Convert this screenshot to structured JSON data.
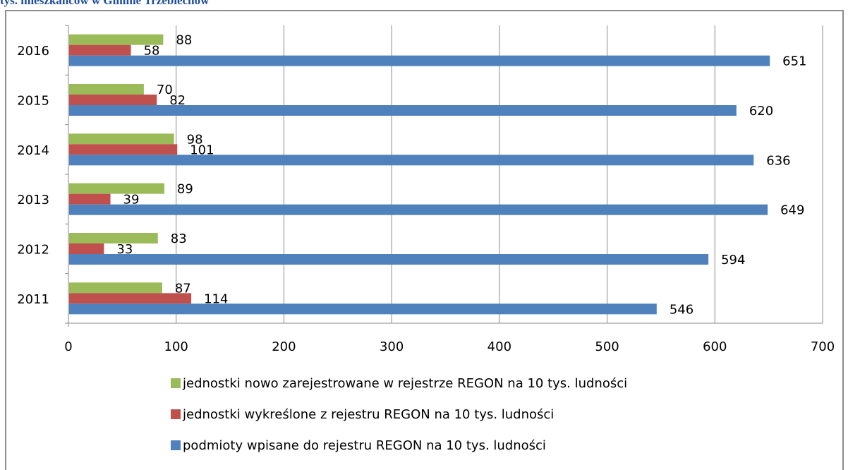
{
  "caption": "tys. mieszkańców w Gminie Trzebiechów",
  "chart_data": {
    "type": "bar",
    "orientation": "horizontal",
    "categories": [
      "2011",
      "2012",
      "2013",
      "2014",
      "2015",
      "2016"
    ],
    "series": [
      {
        "name": "jednostki nowo zarejestrowane w rejestrze REGON na 10 tys. ludności",
        "color": "#9bbb59",
        "values": [
          87,
          83,
          89,
          98,
          70,
          88
        ]
      },
      {
        "name": "jednostki wykreślone z rejestru REGON na 10 tys. ludności",
        "color": "#c0504d",
        "values": [
          114,
          33,
          39,
          101,
          82,
          58
        ]
      },
      {
        "name": "podmioty wpisane do rejestru REGON na 10 tys. ludności",
        "color": "#4f81bd",
        "values": [
          546,
          594,
          649,
          636,
          620,
          651
        ]
      }
    ],
    "xlim": [
      0,
      700
    ],
    "xticks": [
      "0",
      "100",
      "200",
      "300",
      "400",
      "500",
      "600",
      "700"
    ],
    "xgrid": true,
    "legend_position": "bottom"
  }
}
